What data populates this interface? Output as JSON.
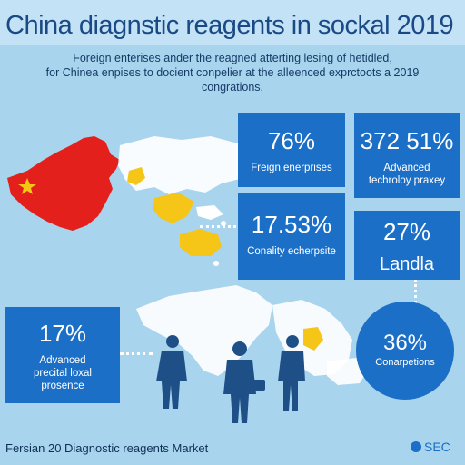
{
  "header": {
    "title": "China diagnstic reagents in sockal 2019",
    "subtitle_lines": [
      "Foreign enterises ander the reagned atterting lesing of hetidled,",
      "for Chinea enpises to docient conpelier at the alleenced exprctoots a 2019",
      "congrations."
    ]
  },
  "stats": {
    "foreign": {
      "value": "76%",
      "label": "Freign enerprises"
    },
    "advanced": {
      "value": "372 51%",
      "label_lines": [
        "Advanced",
        "techroloy praxey"
      ]
    },
    "conality": {
      "value": "17.53%",
      "label": "Conality echerpsite"
    },
    "landla": {
      "value": "27%",
      "label": "Landla"
    },
    "local": {
      "value": "17%",
      "label_lines": [
        "Advanced",
        "precital loxal",
        "prosence"
      ]
    },
    "conpanies": {
      "value": "36%",
      "label": "Conarpetions"
    }
  },
  "footer": {
    "title": "Fersian 20 Diagnostic reagents Market",
    "logo_text": "SEC"
  },
  "colors": {
    "background": "#a9d4ee",
    "box_blue": "#1b6fc7",
    "china_red": "#e3201b",
    "highlight_yellow": "#f5c518",
    "title_blue": "#1a4a86"
  },
  "icons": [
    "china-flag-star-icon",
    "person-silhouette-icon",
    "briefcase-icon",
    "logo-globe-icon"
  ]
}
